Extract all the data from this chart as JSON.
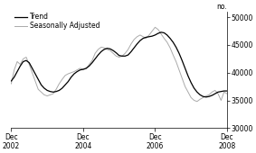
{
  "ylabel": "no.",
  "ylim": [
    30000,
    51000
  ],
  "yticks": [
    30000,
    35000,
    40000,
    45000,
    50000
  ],
  "xlim": [
    0,
    72
  ],
  "legend_labels": [
    "Trend",
    "Seasonally Adjusted"
  ],
  "legend_colors": [
    "#000000",
    "#aaaaaa"
  ],
  "trend": [
    38500,
    39200,
    40200,
    41200,
    42000,
    42200,
    41800,
    40800,
    39800,
    38800,
    37800,
    37200,
    36800,
    36600,
    36500,
    36600,
    36800,
    37200,
    37800,
    38400,
    39200,
    39800,
    40200,
    40500,
    40600,
    40800,
    41200,
    41800,
    42500,
    43200,
    43800,
    44200,
    44400,
    44300,
    44000,
    43600,
    43100,
    43000,
    43000,
    43200,
    43800,
    44500,
    45200,
    45800,
    46200,
    46400,
    46500,
    46600,
    46800,
    47100,
    47300,
    47200,
    46800,
    46200,
    45500,
    44600,
    43500,
    42200,
    40800,
    39400,
    38200,
    37200,
    36500,
    36000,
    35700,
    35600,
    35700,
    35900,
    36200,
    36500,
    36600,
    36700,
    36700
  ],
  "seasonally_adjusted": [
    38000,
    40500,
    42000,
    41500,
    42500,
    42800,
    41500,
    40000,
    38500,
    37000,
    36500,
    36000,
    35800,
    36000,
    36200,
    37000,
    38000,
    38800,
    39500,
    39800,
    40000,
    40200,
    40500,
    40800,
    40600,
    40700,
    41500,
    42200,
    43500,
    44200,
    44600,
    44500,
    44200,
    44000,
    43500,
    43000,
    42800,
    43000,
    43500,
    44200,
    45200,
    46000,
    46500,
    46800,
    46500,
    46200,
    46800,
    47500,
    48200,
    47800,
    47000,
    46200,
    45500,
    44500,
    43200,
    42000,
    40500,
    39000,
    37500,
    36500,
    35500,
    35000,
    34800,
    35200,
    35500,
    35800,
    36000,
    36500,
    36800,
    36200,
    35000,
    36500,
    36200
  ],
  "xtick_positions": [
    0,
    24,
    48,
    72
  ],
  "xtick_labels": [
    "Dec\n2002",
    "Dec\n2004",
    "Dec\n2006",
    "Dec\n2008"
  ]
}
